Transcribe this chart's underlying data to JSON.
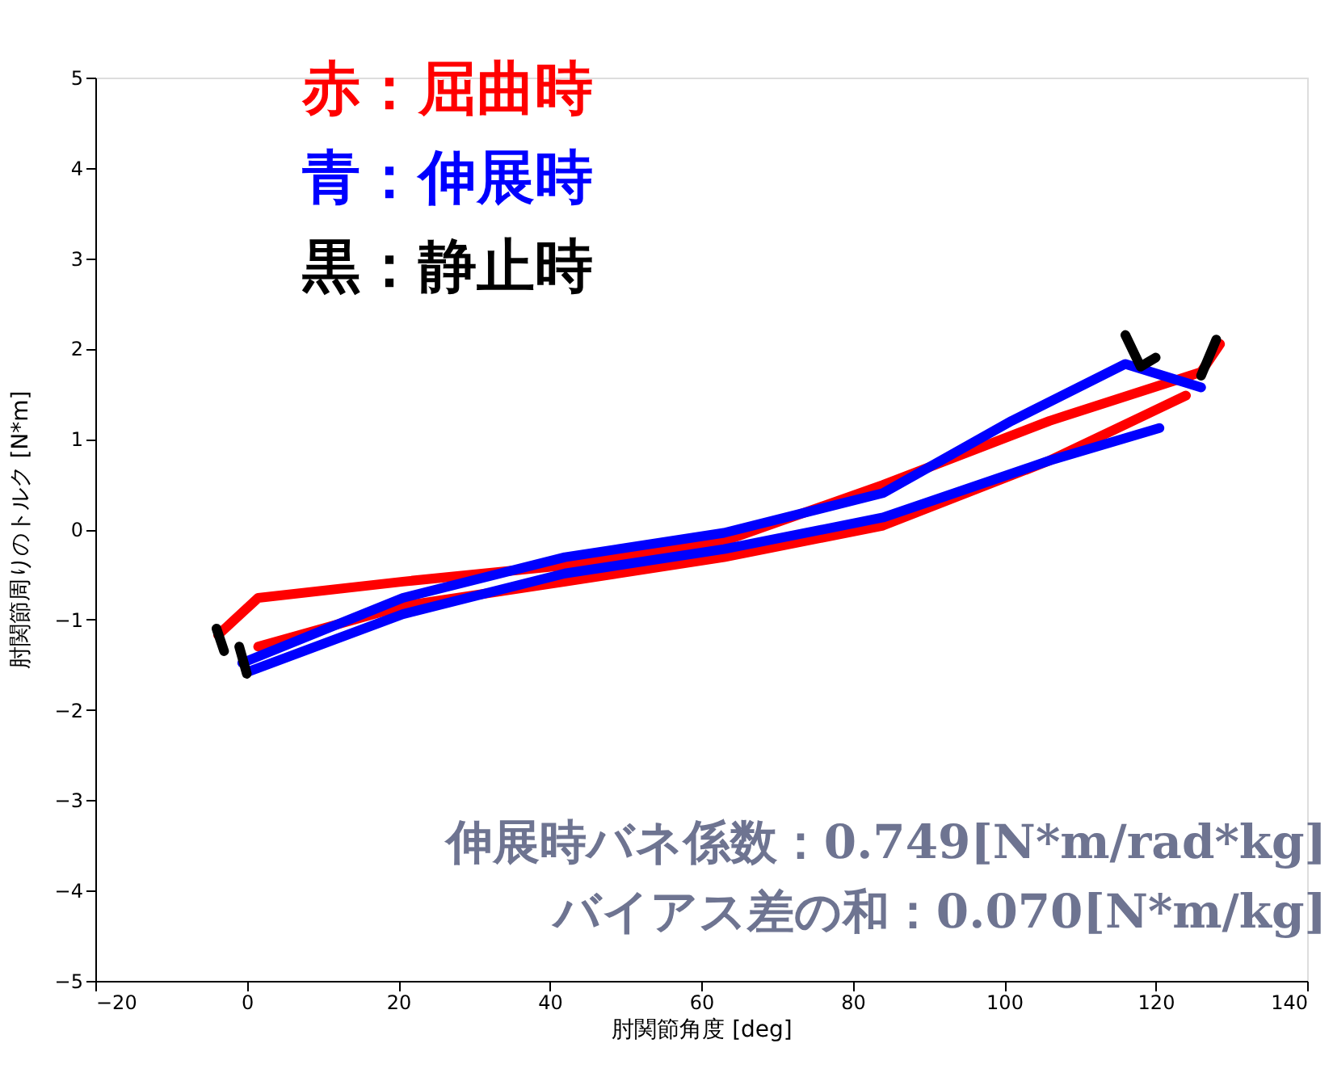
{
  "chart_data": {
    "type": "line",
    "xlabel": "肘関節角度 [deg]",
    "ylabel": "肘関節周りのトルク [N*m]",
    "xlim": [
      -20,
      140
    ],
    "ylim": [
      -5,
      5
    ],
    "xticks": [
      -20,
      0,
      20,
      40,
      60,
      80,
      100,
      120,
      140
    ],
    "yticks": [
      -5,
      -4,
      -3,
      -2,
      -1,
      0,
      1,
      2,
      3,
      4,
      5
    ],
    "grid": false,
    "legend": "top left",
    "marker": "none",
    "line_style": "solid",
    "annotations": [
      "伸展時バネ係数：0.749[N*m/rad*kg]",
      "バイアス差の和：0.070[N*m/kg]"
    ],
    "series": [
      {
        "name": "赤：屈曲時",
        "color": "#ff0000",
        "x": [
          -3.8,
          1.5,
          20.6,
          42,
          63,
          84,
          106,
          126,
          128.5
        ],
        "values": [
          -1.17,
          -0.76,
          -0.58,
          -0.4,
          -0.13,
          0.49,
          1.2,
          1.74,
          2.05
        ]
      },
      {
        "color": "#ff0000",
        "x": [
          1.5,
          20.6,
          42,
          63,
          84,
          106,
          124
        ],
        "values": [
          -1.3,
          -0.85,
          -0.58,
          -0.31,
          0.04,
          0.76,
          1.48
        ]
      },
      {
        "name": "青：伸展時",
        "color": "#0000ff",
        "x": [
          -0.6,
          20.6,
          42,
          63,
          84,
          101,
          116,
          126
        ],
        "values": [
          -1.48,
          -0.76,
          -0.31,
          -0.04,
          0.4,
          1.2,
          1.83,
          1.57
        ]
      },
      {
        "color": "#0000ff",
        "x": [
          0.4,
          20.6,
          42,
          63,
          84,
          106,
          120.5
        ],
        "values": [
          -1.57,
          -0.94,
          -0.49,
          -0.22,
          0.13,
          0.76,
          1.12
        ]
      },
      {
        "name": "黒：静止時",
        "color": "#000000",
        "x": [
          -4,
          -3,
          null,
          -1,
          0,
          null,
          116,
          118,
          120,
          null,
          126,
          128
        ],
        "values": [
          -1.1,
          -1.35,
          null,
          -1.3,
          -1.6,
          null,
          2.15,
          1.8,
          1.9,
          null,
          1.7,
          2.1
        ]
      }
    ]
  }
}
